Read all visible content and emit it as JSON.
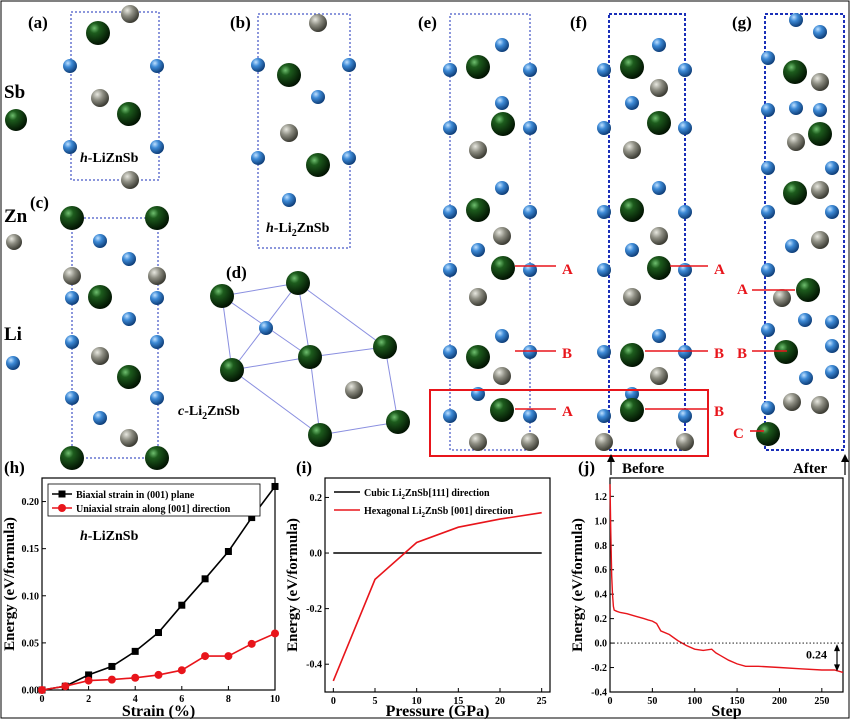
{
  "panel_labels": {
    "a": "(a)",
    "b": "(b)",
    "c": "(c)",
    "d": "(d)",
    "e": "(e)",
    "f": "(f)",
    "g": "(g)",
    "h": "(h)",
    "i": "(i)",
    "j": "(j)"
  },
  "element_legend": [
    {
      "symbol": "Sb",
      "color": "#0a3d0a"
    },
    {
      "symbol": "Zn",
      "color": "#7a7a70"
    },
    {
      "symbol": "Li",
      "color": "#2f78c4"
    }
  ],
  "structures": {
    "a_caption": {
      "prefix": "h",
      "text": "-LiZnSb"
    },
    "b_caption": {
      "prefix": "h",
      "text": "-Li",
      "sub": "2",
      "rest": "ZnSb"
    },
    "d_caption": {
      "prefix": "c",
      "text": "-Li",
      "sub": "2",
      "rest": "ZnSb"
    }
  },
  "path_annotations": {
    "e_labels": [
      "A",
      "B",
      "A"
    ],
    "f_labels": [
      "A",
      "B",
      "B"
    ],
    "g_labels": [
      "A",
      "B",
      "C"
    ],
    "before": "Before",
    "after": "After"
  },
  "colors": {
    "red": "#e8151b",
    "black": "#000000",
    "frame_blue": "#1a2fb8",
    "sb": "#0a3d0a",
    "zn": "#7d7d72",
    "li": "#2f7ac8"
  },
  "chart_data": [
    {
      "id": "h",
      "type": "line",
      "annotation": {
        "prefix": "h",
        "text": "-LiZnSb"
      },
      "xlabel": "Strain (%)",
      "ylabel": "Energy (eV/formula)",
      "xlim": [
        0,
        10
      ],
      "ylim": [
        0,
        0.225
      ],
      "xticks": [
        0,
        2,
        4,
        6,
        8,
        10
      ],
      "yticks": [
        0.0,
        0.05,
        0.1,
        0.15,
        0.2
      ],
      "ytick_labels": [
        "0.00",
        "0.05",
        "0.10",
        "0.15",
        "0.20"
      ],
      "series": [
        {
          "name": "Biaxial strain in (001) plane",
          "marker": "square",
          "color": "#000000",
          "x": [
            0,
            1,
            2,
            3,
            4,
            5,
            6,
            7,
            8,
            9,
            10
          ],
          "y": [
            0.0,
            0.004,
            0.016,
            0.025,
            0.041,
            0.061,
            0.09,
            0.118,
            0.147,
            0.183,
            0.216
          ]
        },
        {
          "name": "Uniaxial strain along [001] direction",
          "marker": "circle",
          "color": "#e8151b",
          "x": [
            0,
            1,
            2,
            3,
            4,
            5,
            6,
            7,
            8,
            9,
            10
          ],
          "y": [
            0.0,
            0.004,
            0.01,
            0.011,
            0.013,
            0.016,
            0.021,
            0.036,
            0.036,
            0.049,
            0.06
          ]
        }
      ]
    },
    {
      "id": "i",
      "type": "line",
      "xlabel": "Pressure (GPa)",
      "ylabel": "Energy (eV/formula)",
      "xlim": [
        -1,
        26
      ],
      "ylim": [
        -0.5,
        0.27
      ],
      "xticks": [
        0,
        5,
        10,
        15,
        20,
        25
      ],
      "yticks": [
        -0.4,
        -0.2,
        0.0,
        0.2
      ],
      "ytick_labels": [
        "-0.4",
        "-0.2",
        "0.0",
        "0.2"
      ],
      "series": [
        {
          "name": "Cubic Li2ZnSb[111] direction",
          "name_parts": [
            "Cubic Li",
            "2",
            "ZnSb[111] direction"
          ],
          "color": "#000000",
          "x": [
            0,
            25
          ],
          "y": [
            0.0,
            0.0
          ]
        },
        {
          "name": "Hexagonal Li2ZnSb [001] direction",
          "name_parts": [
            "Hexagonal Li",
            "2",
            "ZnSb [001] direction"
          ],
          "color": "#e8151b",
          "x": [
            0,
            5,
            10,
            15,
            20,
            25
          ],
          "y": [
            -0.46,
            -0.095,
            0.038,
            0.093,
            0.122,
            0.145
          ]
        }
      ]
    },
    {
      "id": "j",
      "type": "line",
      "xlabel": "Step",
      "ylabel": "Energy (eV/formula)",
      "xlim": [
        0,
        275
      ],
      "ylim": [
        -0.4,
        1.35
      ],
      "xticks": [
        0,
        50,
        100,
        150,
        200,
        250
      ],
      "yticks": [
        -0.4,
        -0.2,
        0.0,
        0.2,
        0.4,
        0.6,
        0.8,
        1.0,
        1.2
      ],
      "ytick_labels": [
        "-0.4",
        "-0.2",
        "0.0",
        "0.2",
        "0.4",
        "0.6",
        "0.8",
        "1.0",
        "1.2"
      ],
      "annotation": "0.24",
      "series": [
        {
          "color": "#e8151b",
          "x": [
            0,
            1,
            2,
            3,
            4,
            5,
            8,
            12,
            20,
            30,
            40,
            45,
            50,
            55,
            60,
            70,
            80,
            90,
            100,
            110,
            120,
            125,
            130,
            140,
            150,
            160,
            175,
            200,
            225,
            250,
            265,
            275
          ],
          "y": [
            1.3,
            0.9,
            0.55,
            0.4,
            0.3,
            0.27,
            0.26,
            0.25,
            0.24,
            0.22,
            0.2,
            0.19,
            0.18,
            0.16,
            0.1,
            0.07,
            0.02,
            -0.02,
            -0.05,
            -0.06,
            -0.05,
            -0.08,
            -0.1,
            -0.14,
            -0.17,
            -0.19,
            -0.19,
            -0.2,
            -0.21,
            -0.22,
            -0.22,
            -0.24
          ]
        }
      ]
    }
  ]
}
